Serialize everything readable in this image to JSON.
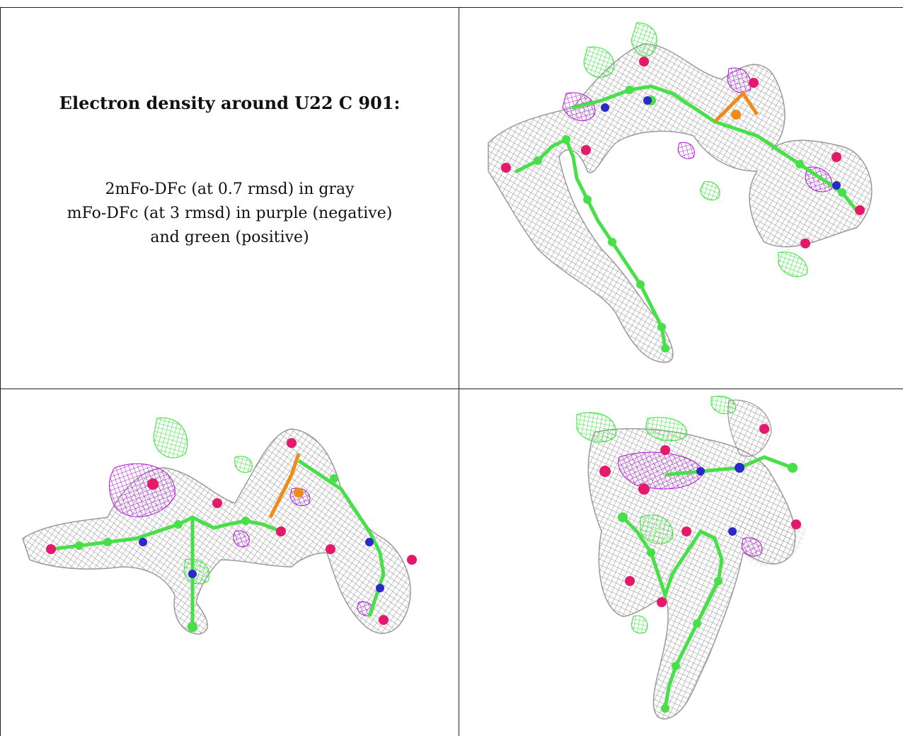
{
  "caption": {
    "title": "Electron density around U22 C 901:",
    "line1": "2mFo-DFc (at 0.7 rmsd) in gray",
    "line2": "mFo-DFc (at 3 rmsd) in purple (negative)",
    "line3": "and green (positive)"
  },
  "panels": [
    {
      "name": "view-top-right",
      "depicts": "density-view-1"
    },
    {
      "name": "view-bottom-left",
      "depicts": "density-view-2"
    },
    {
      "name": "view-bottom-right",
      "depicts": "density-view-3"
    }
  ],
  "colors": {
    "mesh_gray": "#9a9a9a",
    "negative_purple": "#b010d8",
    "positive_green": "#2ee02e",
    "carbon": "#48e048",
    "oxygen": "#e6186a",
    "nitrogen": "#2a2ac8",
    "phosphorus": "#f28a1a",
    "grid": "#222222"
  }
}
